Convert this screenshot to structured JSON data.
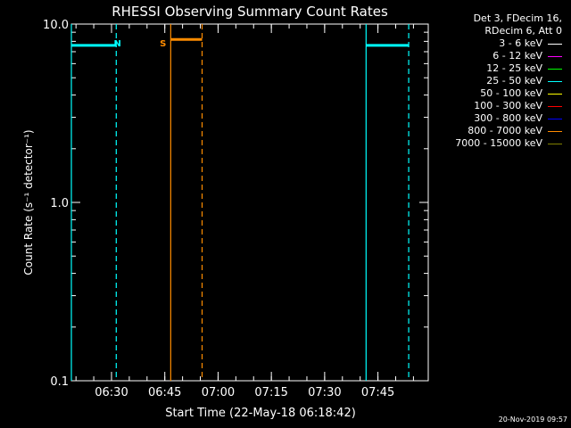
{
  "chart_data": {
    "type": "line",
    "title": "RHESSI Observing Summary Count Rates",
    "xlabel": "Start Time (22-May-18 06:18:42)",
    "ylabel": "Count Rate (s⁻¹ detector⁻¹)",
    "yscale": "log",
    "ylim": [
      0.1,
      10.0
    ],
    "xlim": [
      "06:18:42",
      "07:59:10"
    ],
    "ytick_labels": [
      "10.0",
      "1.0",
      "0.1"
    ],
    "yticks": [
      10.0,
      1.0,
      0.1
    ],
    "xtick_labels": [
      "06:30",
      "06:45",
      "07:00",
      "07:15",
      "07:30",
      "07:45"
    ],
    "xticks": [
      "06:30",
      "06:45",
      "07:00",
      "07:15",
      "07:30",
      "07:45"
    ],
    "annotations": [
      {
        "text": "N",
        "x": "06:31:40",
        "color": "#00ffff"
      },
      {
        "text": "S",
        "x": "06:44:30",
        "color": "#ff8c00"
      }
    ],
    "solid_markers": [
      {
        "x": "06:18:42",
        "color": "#00ffff"
      },
      {
        "x": "06:46:40",
        "color": "#ff8c00"
      },
      {
        "x": "07:41:40",
        "color": "#00ffff"
      }
    ],
    "dashed_markers": [
      {
        "x": "06:31:20",
        "color": "#00ffff"
      },
      {
        "x": "06:55:30",
        "color": "#ff8c00"
      },
      {
        "x": "07:53:40",
        "color": "#00ffff"
      }
    ],
    "flag_bars": [
      {
        "x": [
          "06:18:42",
          "06:31:20"
        ],
        "y": 7.6,
        "color": "#00ffff"
      },
      {
        "x": [
          "06:46:40",
          "06:55:30"
        ],
        "y": 8.2,
        "color": "#ff8c00"
      },
      {
        "x": [
          "07:41:40",
          "07:53:40"
        ],
        "y": 7.6,
        "color": "#00ffff"
      }
    ],
    "legend_placement": "top-right",
    "series": [
      {
        "name": "3 - 6 keV",
        "color": "#ffffff"
      },
      {
        "name": "6 - 12 keV",
        "color": "#ff00ff"
      },
      {
        "name": "12 - 25 keV",
        "color": "#00ff00"
      },
      {
        "name": "25 - 50 keV",
        "color": "#00ffff"
      },
      {
        "name": "50 - 100 keV",
        "color": "#ffff00"
      },
      {
        "name": "100 - 300 keV",
        "color": "#ff0000"
      },
      {
        "name": "300 - 800 keV",
        "color": "#0000ff"
      },
      {
        "name": "800 - 7000 keV",
        "color": "#ff8c00"
      },
      {
        "name": "7000 - 15000 keV",
        "color": "#808000"
      }
    ]
  },
  "legend": {
    "header_line1": "Det 3, FDecim 16,",
    "header_line2": "RDecim 6, Att 0"
  },
  "timestamp": "20-Nov-2019 09:57"
}
